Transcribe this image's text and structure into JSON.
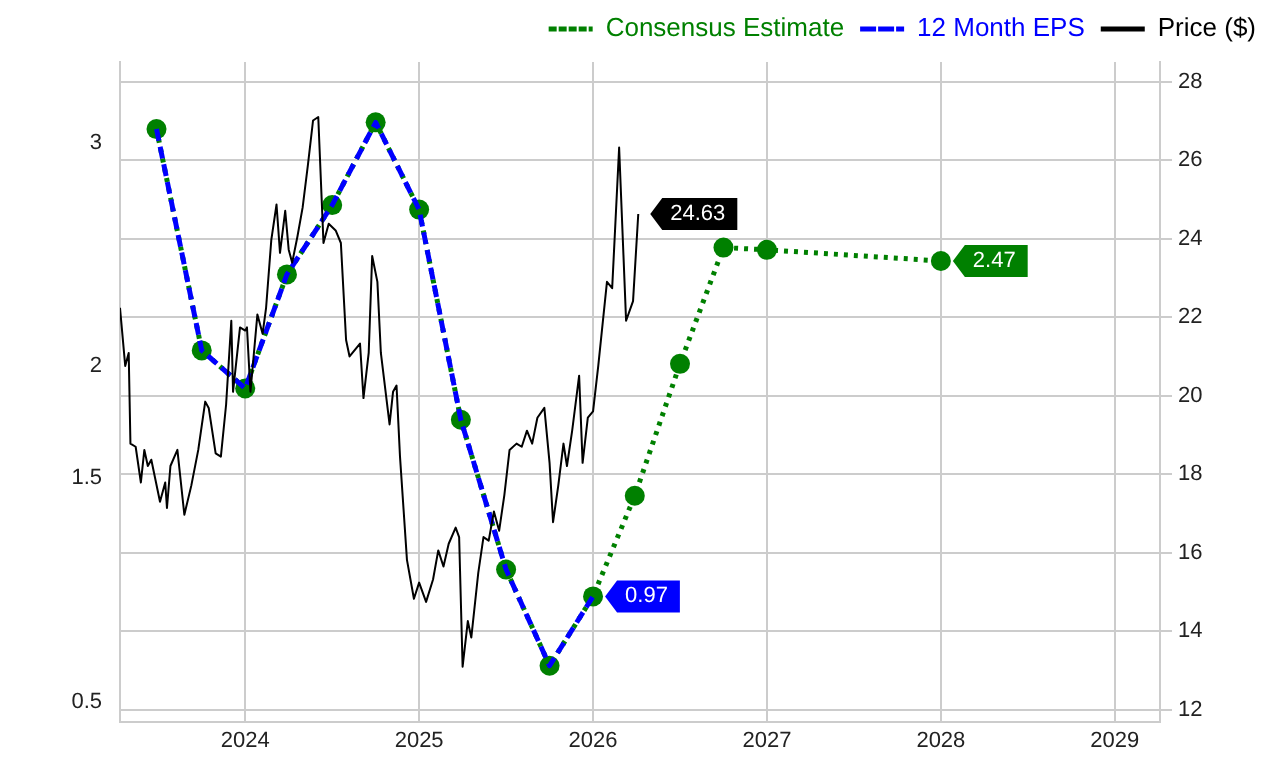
{
  "chart_data": {
    "type": "line",
    "series": [
      {
        "name": "Consensus Estimate",
        "color": "#008000",
        "line_style": "dotted",
        "marker": "circle",
        "x": [
          2023.49,
          2023.75,
          2024.0,
          2024.24,
          2024.5,
          2024.75,
          2025.0,
          2025.24,
          2025.5,
          2025.75,
          2026.0,
          2026.24,
          2026.5,
          2026.75,
          2027.0,
          2028.0
        ],
        "values": [
          3.06,
          2.07,
          1.9,
          2.41,
          2.72,
          3.09,
          2.7,
          1.76,
          1.09,
          0.66,
          0.97,
          1.42,
          2.01,
          2.53,
          2.52,
          2.47
        ],
        "value_labels": [
          null,
          null,
          null,
          null,
          null,
          null,
          null,
          null,
          null,
          null,
          null,
          null,
          null,
          null,
          null,
          "2.47"
        ]
      },
      {
        "name": "12 Month EPS",
        "color": "#0000ff",
        "line_style": "dashed",
        "marker": "none",
        "x": [
          2023.49,
          2023.75,
          2024.0,
          2024.24,
          2024.5,
          2024.75,
          2025.0,
          2025.24,
          2025.5,
          2025.75,
          2026.0
        ],
        "values": [
          3.06,
          2.07,
          1.9,
          2.41,
          2.72,
          3.09,
          2.7,
          1.76,
          1.09,
          0.66,
          0.97
        ],
        "value_labels": [
          null,
          null,
          null,
          null,
          null,
          null,
          null,
          null,
          null,
          null,
          "0.97"
        ]
      },
      {
        "name": "Price ($)",
        "color": "#000000",
        "line_style": "solid",
        "marker": "none",
        "axis": "y2",
        "x": [
          2023.28,
          2023.31,
          2023.33,
          2023.34,
          2023.37,
          2023.4,
          2023.42,
          2023.44,
          2023.46,
          2023.51,
          2023.54,
          2023.55,
          2023.57,
          2023.61,
          2023.65,
          2023.69,
          2023.73,
          2023.77,
          2023.79,
          2023.83,
          2023.86,
          2023.89,
          2023.92,
          2023.93,
          2023.97,
          2024.0,
          2024.01,
          2024.03,
          2024.07,
          2024.1,
          2024.12,
          2024.15,
          2024.18,
          2024.2,
          2024.23,
          2024.25,
          2024.27,
          2024.3,
          2024.33,
          2024.36,
          2024.39,
          2024.42,
          2024.45,
          2024.48,
          2024.52,
          2024.55,
          2024.58,
          2024.6,
          2024.66,
          2024.68,
          2024.71,
          2024.73,
          2024.76,
          2024.78,
          2024.83,
          2024.85,
          2024.87,
          2024.89,
          2024.93,
          2024.97,
          2025.0,
          2025.04,
          2025.08,
          2025.11,
          2025.14,
          2025.17,
          2025.21,
          2025.23,
          2025.25,
          2025.28,
          2025.3,
          2025.34,
          2025.37,
          2025.4,
          2025.43,
          2025.46,
          2025.49,
          2025.52,
          2025.56,
          2025.59,
          2025.62,
          2025.65,
          2025.68,
          2025.72,
          2025.75,
          2025.77,
          2025.8,
          2025.83,
          2025.85,
          2025.88,
          2025.92,
          2025.94,
          2025.97,
          2026.0,
          2026.03,
          2026.08,
          2026.11,
          2026.15,
          2026.19,
          2026.23,
          2026.26
        ],
        "values": [
          22.24,
          20.76,
          21.09,
          18.78,
          18.7,
          17.79,
          18.62,
          18.21,
          18.37,
          17.3,
          17.79,
          17.14,
          18.21,
          18.62,
          16.97,
          17.71,
          18.62,
          19.85,
          19.69,
          18.53,
          18.45,
          19.77,
          21.91,
          20.1,
          21.74,
          21.66,
          21.74,
          20.1,
          22.07,
          21.58,
          22.24,
          23.97,
          24.87,
          23.64,
          24.71,
          23.72,
          23.39,
          24.05,
          24.79,
          25.86,
          27.01,
          27.1,
          23.89,
          24.38,
          24.21,
          23.89,
          21.42,
          21.0,
          21.33,
          19.94,
          21.09,
          23.56,
          22.9,
          21.09,
          19.27,
          20.1,
          20.26,
          18.45,
          15.82,
          14.83,
          15.24,
          14.75,
          15.32,
          16.06,
          15.65,
          16.23,
          16.64,
          16.4,
          13.1,
          14.26,
          13.84,
          15.49,
          16.4,
          16.31,
          17.05,
          16.56,
          17.47,
          18.62,
          18.78,
          18.7,
          19.11,
          18.78,
          19.44,
          19.69,
          18.29,
          16.78,
          17.71,
          18.78,
          18.21,
          19.11,
          20.51,
          18.29,
          19.44,
          19.6,
          20.76,
          22.9,
          22.74,
          26.32,
          21.91,
          22.41,
          24.63
        ],
        "value_labels": [
          null,
          null,
          null,
          null,
          null,
          null,
          null,
          null,
          null,
          null,
          null,
          null,
          null,
          null,
          null,
          null,
          null,
          null,
          null,
          null,
          null,
          null,
          null,
          null,
          null,
          null,
          null,
          null,
          null,
          null,
          null,
          null,
          null,
          null,
          null,
          null,
          null,
          null,
          null,
          null,
          null,
          null,
          null,
          null,
          null,
          null,
          null,
          null,
          null,
          null,
          null,
          null,
          null,
          null,
          null,
          null,
          null,
          null,
          null,
          null,
          null,
          null,
          null,
          null,
          null,
          null,
          null,
          null,
          null,
          null,
          null,
          null,
          null,
          null,
          null,
          null,
          null,
          null,
          null,
          null,
          null,
          null,
          null,
          null,
          null,
          null,
          null,
          null,
          null,
          null,
          null,
          null,
          null,
          null,
          null,
          null,
          null,
          null,
          null,
          null,
          "24.63"
        ]
      }
    ],
    "xlim": [
      2023.28,
      2029.26
    ],
    "xticks": [
      2024,
      2025,
      2026,
      2027,
      2028,
      2029
    ],
    "ylim": [
      0.41,
      3.36
    ],
    "yticks": [
      0.5,
      1.5,
      2,
      3
    ],
    "y2lim": [
      11.7,
      28.5
    ],
    "y2ticks": [
      12,
      14,
      16,
      18,
      20,
      22,
      24,
      26,
      28
    ],
    "grid": true,
    "legend": "top right"
  }
}
